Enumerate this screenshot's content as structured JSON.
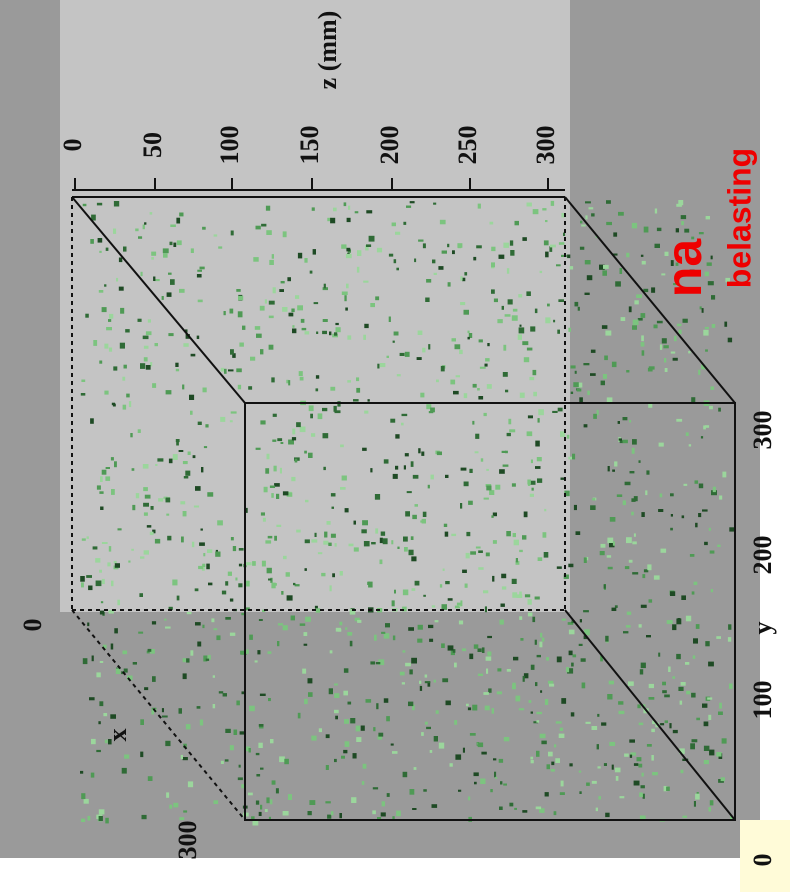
{
  "z_axis": {
    "label": "z (mm)",
    "ticks": [
      "0",
      "50",
      "100",
      "150",
      "200",
      "250",
      "300"
    ]
  },
  "y_axis": {
    "label": "y",
    "ticks": [
      "0",
      "100",
      "200",
      "300"
    ]
  },
  "x_axis": {
    "label": "x",
    "ticks": [
      "0",
      "300"
    ]
  },
  "annotation": {
    "title": "na",
    "subtitle": "belasting"
  }
}
